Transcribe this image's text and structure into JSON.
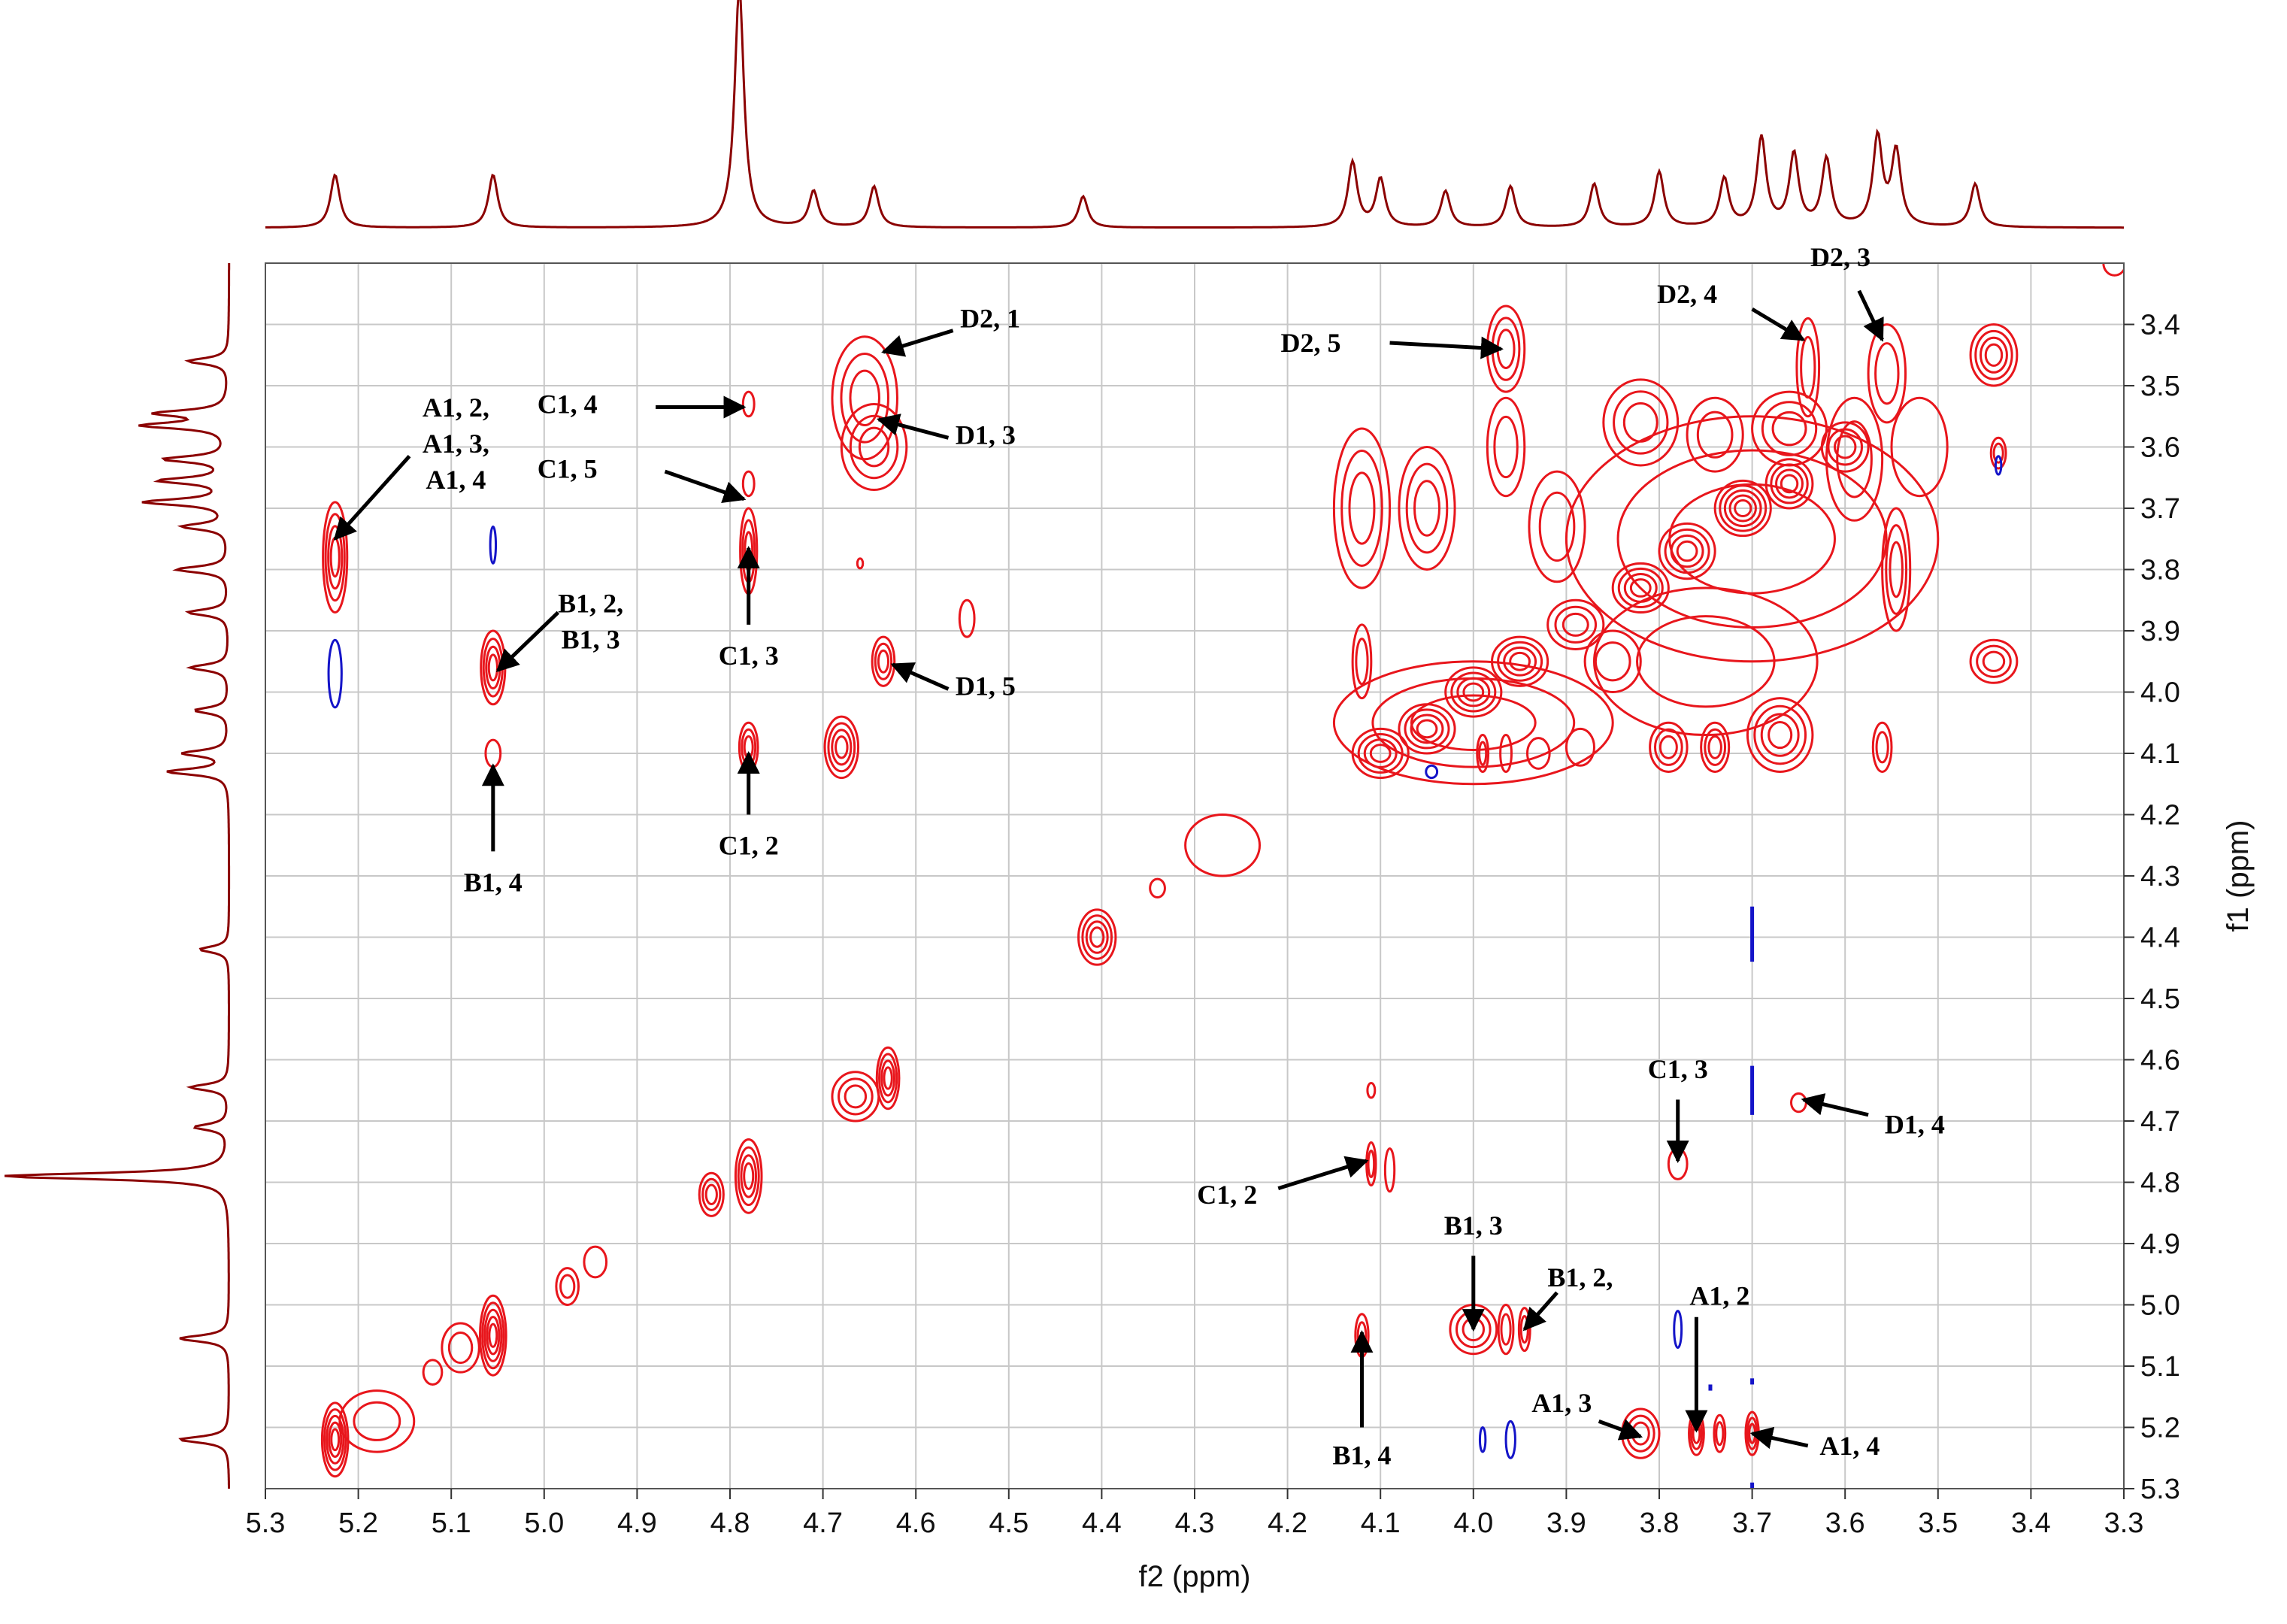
{
  "chart_data": {
    "type": "contour-2d",
    "xlabel": "f2 (ppm)",
    "ylabel": "f1 (ppm)",
    "xlim": [
      5.3,
      3.3
    ],
    "ylim": [
      3.3,
      5.3
    ],
    "x_ticks": [
      "5.3",
      "5.2",
      "5.1",
      "5.0",
      "4.9",
      "4.8",
      "4.7",
      "4.6",
      "4.5",
      "4.4",
      "4.3",
      "4.2",
      "4.1",
      "4.0",
      "3.9",
      "3.8",
      "3.7",
      "3.6",
      "3.5",
      "3.4",
      "3.3"
    ],
    "y_ticks": [
      "3.4",
      "3.5",
      "3.6",
      "3.7",
      "3.8",
      "3.9",
      "4.0",
      "4.1",
      "4.2",
      "4.3",
      "4.4",
      "4.5",
      "4.6",
      "4.7",
      "4.8",
      "4.9",
      "5.0",
      "5.1",
      "5.2",
      "5.3"
    ],
    "grid": true,
    "colors": {
      "positive": "#e8161c",
      "negative": "#1414c8",
      "projection": "#8b0000",
      "grid": "#c8c8c8"
    },
    "projection_peaks_f2": [
      {
        "x": 5.225,
        "h": 0.22
      },
      {
        "x": 5.055,
        "h": 0.22
      },
      {
        "x": 4.79,
        "h": 1.0
      },
      {
        "x": 4.71,
        "h": 0.15
      },
      {
        "x": 4.645,
        "h": 0.17
      },
      {
        "x": 4.42,
        "h": 0.13
      },
      {
        "x": 4.13,
        "h": 0.27
      },
      {
        "x": 4.1,
        "h": 0.2
      },
      {
        "x": 4.03,
        "h": 0.15
      },
      {
        "x": 3.96,
        "h": 0.17
      },
      {
        "x": 3.87,
        "h": 0.18
      },
      {
        "x": 3.8,
        "h": 0.23
      },
      {
        "x": 3.73,
        "h": 0.2
      },
      {
        "x": 3.69,
        "h": 0.37
      },
      {
        "x": 3.655,
        "h": 0.3
      },
      {
        "x": 3.62,
        "h": 0.28
      },
      {
        "x": 3.565,
        "h": 0.37
      },
      {
        "x": 3.545,
        "h": 0.31
      },
      {
        "x": 3.46,
        "h": 0.18
      }
    ],
    "projection_peaks_f1": [
      {
        "y": 5.22,
        "h": 0.22
      },
      {
        "y": 5.055,
        "h": 0.22
      },
      {
        "y": 4.79,
        "h": 1.0
      },
      {
        "y": 4.71,
        "h": 0.15
      },
      {
        "y": 4.645,
        "h": 0.17
      },
      {
        "y": 4.42,
        "h": 0.13
      },
      {
        "y": 4.13,
        "h": 0.27
      },
      {
        "y": 4.1,
        "h": 0.2
      },
      {
        "y": 4.03,
        "h": 0.15
      },
      {
        "y": 3.96,
        "h": 0.17
      },
      {
        "y": 3.87,
        "h": 0.18
      },
      {
        "y": 3.8,
        "h": 0.23
      },
      {
        "y": 3.73,
        "h": 0.2
      },
      {
        "y": 3.69,
        "h": 0.37
      },
      {
        "y": 3.655,
        "h": 0.3
      },
      {
        "y": 3.62,
        "h": 0.28
      },
      {
        "y": 3.565,
        "h": 0.37
      },
      {
        "y": 3.545,
        "h": 0.31
      },
      {
        "y": 3.46,
        "h": 0.18
      }
    ],
    "peaks": [
      {
        "x": 5.225,
        "y": 5.22,
        "sx": 0.014,
        "sy": 0.06,
        "levels": 5,
        "sign": "pos"
      },
      {
        "x": 5.18,
        "y": 5.19,
        "sx": 0.04,
        "sy": 0.05,
        "levels": 2,
        "sign": "pos"
      },
      {
        "x": 5.12,
        "y": 5.11,
        "sx": 0.01,
        "sy": 0.02,
        "levels": 1,
        "sign": "pos"
      },
      {
        "x": 5.055,
        "y": 5.05,
        "sx": 0.014,
        "sy": 0.065,
        "levels": 5,
        "sign": "pos"
      },
      {
        "x": 5.09,
        "y": 5.07,
        "sx": 0.02,
        "sy": 0.04,
        "levels": 2,
        "sign": "pos"
      },
      {
        "x": 4.975,
        "y": 4.97,
        "sx": 0.012,
        "sy": 0.03,
        "levels": 2,
        "sign": "pos"
      },
      {
        "x": 4.945,
        "y": 4.93,
        "sx": 0.012,
        "sy": 0.025,
        "levels": 1,
        "sign": "pos"
      },
      {
        "x": 4.82,
        "y": 4.82,
        "sx": 0.013,
        "sy": 0.035,
        "levels": 3,
        "sign": "pos"
      },
      {
        "x": 4.78,
        "y": 4.79,
        "sx": 0.014,
        "sy": 0.06,
        "levels": 4,
        "sign": "pos"
      },
      {
        "x": 4.665,
        "y": 4.66,
        "sx": 0.025,
        "sy": 0.04,
        "levels": 3,
        "sign": "pos"
      },
      {
        "x": 4.63,
        "y": 4.63,
        "sx": 0.012,
        "sy": 0.05,
        "levels": 4,
        "sign": "pos"
      },
      {
        "x": 4.405,
        "y": 4.4,
        "sx": 0.02,
        "sy": 0.045,
        "levels": 4,
        "sign": "pos"
      },
      {
        "x": 4.34,
        "y": 4.32,
        "sx": 0.008,
        "sy": 0.015,
        "levels": 1,
        "sign": "pos"
      },
      {
        "x": 4.27,
        "y": 4.25,
        "sx": 0.04,
        "sy": 0.05,
        "levels": 1,
        "sign": "pos"
      },
      {
        "x": 5.225,
        "y": 3.78,
        "sx": 0.013,
        "sy": 0.09,
        "levels": 4,
        "sign": "pos"
      },
      {
        "x": 5.055,
        "y": 3.96,
        "sx": 0.013,
        "sy": 0.06,
        "levels": 4,
        "sign": "pos"
      },
      {
        "x": 5.055,
        "y": 4.1,
        "sx": 0.008,
        "sy": 0.022,
        "levels": 1,
        "sign": "pos"
      },
      {
        "x": 4.78,
        "y": 3.53,
        "sx": 0.006,
        "sy": 0.02,
        "levels": 1,
        "sign": "pos"
      },
      {
        "x": 4.78,
        "y": 3.66,
        "sx": 0.006,
        "sy": 0.02,
        "levels": 1,
        "sign": "pos"
      },
      {
        "x": 4.78,
        "y": 3.77,
        "sx": 0.009,
        "sy": 0.07,
        "levels": 3,
        "sign": "pos"
      },
      {
        "x": 4.78,
        "y": 4.09,
        "sx": 0.01,
        "sy": 0.04,
        "levels": 3,
        "sign": "pos"
      },
      {
        "x": 4.68,
        "y": 4.09,
        "sx": 0.018,
        "sy": 0.05,
        "levels": 4,
        "sign": "pos"
      },
      {
        "x": 4.655,
        "y": 3.52,
        "sx": 0.035,
        "sy": 0.1,
        "levels": 3,
        "sign": "pos"
      },
      {
        "x": 4.645,
        "y": 3.6,
        "sx": 0.035,
        "sy": 0.07,
        "levels": 3,
        "sign": "pos"
      },
      {
        "x": 4.635,
        "y": 3.95,
        "sx": 0.012,
        "sy": 0.04,
        "levels": 3,
        "sign": "pos"
      },
      {
        "x": 4.545,
        "y": 3.88,
        "sx": 0.008,
        "sy": 0.03,
        "levels": 1,
        "sign": "pos"
      },
      {
        "x": 4.66,
        "y": 3.79,
        "sx": 0.003,
        "sy": 0.008,
        "levels": 1,
        "sign": "pos"
      },
      {
        "x": 4.11,
        "y": 4.65,
        "sx": 0.004,
        "sy": 0.012,
        "levels": 1,
        "sign": "pos"
      },
      {
        "x": 4.11,
        "y": 4.77,
        "sx": 0.005,
        "sy": 0.035,
        "levels": 2,
        "sign": "pos"
      },
      {
        "x": 4.09,
        "y": 4.78,
        "sx": 0.005,
        "sy": 0.035,
        "levels": 1,
        "sign": "pos"
      },
      {
        "x": 3.78,
        "y": 4.77,
        "sx": 0.01,
        "sy": 0.025,
        "levels": 1,
        "sign": "pos"
      },
      {
        "x": 3.65,
        "y": 4.67,
        "sx": 0.008,
        "sy": 0.015,
        "levels": 1,
        "sign": "pos"
      },
      {
        "x": 4.12,
        "y": 5.05,
        "sx": 0.007,
        "sy": 0.035,
        "levels": 2,
        "sign": "pos"
      },
      {
        "x": 4.0,
        "y": 5.04,
        "sx": 0.025,
        "sy": 0.04,
        "levels": 3,
        "sign": "pos"
      },
      {
        "x": 3.965,
        "y": 5.04,
        "sx": 0.008,
        "sy": 0.04,
        "levels": 2,
        "sign": "pos"
      },
      {
        "x": 3.945,
        "y": 5.04,
        "sx": 0.006,
        "sy": 0.035,
        "levels": 2,
        "sign": "pos"
      },
      {
        "x": 3.82,
        "y": 5.21,
        "sx": 0.02,
        "sy": 0.04,
        "levels": 3,
        "sign": "pos"
      },
      {
        "x": 3.76,
        "y": 5.21,
        "sx": 0.008,
        "sy": 0.035,
        "levels": 3,
        "sign": "pos"
      },
      {
        "x": 3.735,
        "y": 5.21,
        "sx": 0.006,
        "sy": 0.03,
        "levels": 2,
        "sign": "pos"
      },
      {
        "x": 3.7,
        "y": 5.21,
        "sx": 0.007,
        "sy": 0.035,
        "levels": 3,
        "sign": "pos"
      },
      {
        "x": 3.965,
        "y": 3.44,
        "sx": 0.02,
        "sy": 0.07,
        "levels": 3,
        "sign": "pos"
      },
      {
        "x": 3.965,
        "y": 3.6,
        "sx": 0.02,
        "sy": 0.08,
        "levels": 2,
        "sign": "pos"
      },
      {
        "x": 3.64,
        "y": 3.47,
        "sx": 0.012,
        "sy": 0.08,
        "levels": 2,
        "sign": "pos"
      },
      {
        "x": 3.555,
        "y": 3.48,
        "sx": 0.02,
        "sy": 0.08,
        "levels": 2,
        "sign": "pos"
      },
      {
        "x": 3.44,
        "y": 3.45,
        "sx": 0.025,
        "sy": 0.05,
        "levels": 4,
        "sign": "pos"
      },
      {
        "x": 3.435,
        "y": 3.61,
        "sx": 0.008,
        "sy": 0.025,
        "levels": 2,
        "sign": "pos"
      },
      {
        "x": 3.44,
        "y": 3.95,
        "sx": 0.025,
        "sy": 0.035,
        "levels": 3,
        "sign": "pos"
      },
      {
        "x": 3.545,
        "y": 3.8,
        "sx": 0.015,
        "sy": 0.1,
        "levels": 3,
        "sign": "pos"
      },
      {
        "x": 4.1,
        "y": 4.1,
        "sx": 0.03,
        "sy": 0.04,
        "levels": 4,
        "sign": "pos"
      },
      {
        "x": 4.05,
        "y": 4.06,
        "sx": 0.03,
        "sy": 0.04,
        "levels": 4,
        "sign": "pos"
      },
      {
        "x": 4.0,
        "y": 4.0,
        "sx": 0.03,
        "sy": 0.04,
        "levels": 4,
        "sign": "pos"
      },
      {
        "x": 3.95,
        "y": 3.95,
        "sx": 0.03,
        "sy": 0.04,
        "levels": 4,
        "sign": "pos"
      },
      {
        "x": 3.89,
        "y": 3.89,
        "sx": 0.03,
        "sy": 0.04,
        "levels": 3,
        "sign": "pos"
      },
      {
        "x": 3.82,
        "y": 3.83,
        "sx": 0.03,
        "sy": 0.04,
        "levels": 4,
        "sign": "pos"
      },
      {
        "x": 3.77,
        "y": 3.77,
        "sx": 0.03,
        "sy": 0.045,
        "levels": 4,
        "sign": "pos"
      },
      {
        "x": 3.71,
        "y": 3.7,
        "sx": 0.03,
        "sy": 0.045,
        "levels": 5,
        "sign": "pos"
      },
      {
        "x": 3.66,
        "y": 3.66,
        "sx": 0.025,
        "sy": 0.04,
        "levels": 4,
        "sign": "pos"
      },
      {
        "x": 3.6,
        "y": 3.6,
        "sx": 0.025,
        "sy": 0.04,
        "levels": 3,
        "sign": "pos"
      },
      {
        "x": 4.0,
        "y": 4.05,
        "sx": 0.15,
        "sy": 0.1,
        "levels": 3,
        "sign": "pos"
      },
      {
        "x": 3.7,
        "y": 3.75,
        "sx": 0.2,
        "sy": 0.2,
        "levels": 3,
        "sign": "pos"
      },
      {
        "x": 3.75,
        "y": 3.95,
        "sx": 0.12,
        "sy": 0.12,
        "levels": 2,
        "sign": "pos"
      },
      {
        "x": 4.12,
        "y": 3.7,
        "sx": 0.03,
        "sy": 0.13,
        "levels": 3,
        "sign": "pos"
      },
      {
        "x": 4.05,
        "y": 3.7,
        "sx": 0.03,
        "sy": 0.1,
        "levels": 3,
        "sign": "pos"
      },
      {
        "x": 4.12,
        "y": 3.95,
        "sx": 0.01,
        "sy": 0.06,
        "levels": 2,
        "sign": "pos"
      },
      {
        "x": 3.82,
        "y": 3.56,
        "sx": 0.04,
        "sy": 0.07,
        "levels": 3,
        "sign": "pos"
      },
      {
        "x": 3.74,
        "y": 3.58,
        "sx": 0.03,
        "sy": 0.06,
        "levels": 2,
        "sign": "pos"
      },
      {
        "x": 3.66,
        "y": 3.57,
        "sx": 0.04,
        "sy": 0.06,
        "levels": 3,
        "sign": "pos"
      },
      {
        "x": 3.59,
        "y": 3.62,
        "sx": 0.03,
        "sy": 0.1,
        "levels": 2,
        "sign": "pos"
      },
      {
        "x": 3.52,
        "y": 3.6,
        "sx": 0.03,
        "sy": 0.08,
        "levels": 1,
        "sign": "pos"
      },
      {
        "x": 3.91,
        "y": 3.73,
        "sx": 0.03,
        "sy": 0.09,
        "levels": 2,
        "sign": "pos"
      },
      {
        "x": 3.85,
        "y": 3.95,
        "sx": 0.03,
        "sy": 0.05,
        "levels": 2,
        "sign": "pos"
      },
      {
        "x": 3.79,
        "y": 4.09,
        "sx": 0.02,
        "sy": 0.04,
        "levels": 3,
        "sign": "pos"
      },
      {
        "x": 3.74,
        "y": 4.09,
        "sx": 0.015,
        "sy": 0.04,
        "levels": 3,
        "sign": "pos"
      },
      {
        "x": 3.67,
        "y": 4.07,
        "sx": 0.035,
        "sy": 0.06,
        "levels": 4,
        "sign": "pos"
      },
      {
        "x": 3.56,
        "y": 4.09,
        "sx": 0.01,
        "sy": 0.04,
        "levels": 2,
        "sign": "pos"
      },
      {
        "x": 3.885,
        "y": 4.09,
        "sx": 0.015,
        "sy": 0.03,
        "levels": 1,
        "sign": "pos"
      },
      {
        "x": 3.99,
        "y": 4.1,
        "sx": 0.006,
        "sy": 0.03,
        "levels": 2,
        "sign": "pos"
      },
      {
        "x": 3.965,
        "y": 4.1,
        "sx": 0.006,
        "sy": 0.03,
        "levels": 1,
        "sign": "pos"
      },
      {
        "x": 3.93,
        "y": 4.1,
        "sx": 0.012,
        "sy": 0.025,
        "levels": 1,
        "sign": "pos"
      },
      {
        "x": 3.31,
        "y": 3.3,
        "sx": 0.012,
        "sy": 0.02,
        "levels": 1,
        "sign": "pos"
      },
      {
        "x": 5.225,
        "y": 3.97,
        "sx": 0.007,
        "sy": 0.055,
        "levels": 1,
        "sign": "neg"
      },
      {
        "x": 5.055,
        "y": 3.76,
        "sx": 0.003,
        "sy": 0.03,
        "levels": 1,
        "sign": "neg"
      },
      {
        "x": 3.435,
        "y": 3.63,
        "sx": 0.003,
        "sy": 0.015,
        "levels": 1,
        "sign": "neg"
      },
      {
        "x": 4.045,
        "y": 4.13,
        "sx": 0.006,
        "sy": 0.01,
        "levels": 1,
        "sign": "neg"
      },
      {
        "x": 3.78,
        "y": 5.04,
        "sx": 0.004,
        "sy": 0.03,
        "levels": 1,
        "sign": "neg"
      },
      {
        "x": 3.99,
        "y": 5.22,
        "sx": 0.003,
        "sy": 0.02,
        "levels": 1,
        "sign": "neg"
      },
      {
        "x": 3.96,
        "y": 5.22,
        "sx": 0.005,
        "sy": 0.03,
        "levels": 1,
        "sign": "neg"
      }
    ],
    "negative_lines": [
      {
        "x": 3.7,
        "y1": 4.35,
        "y2": 4.44
      },
      {
        "x": 3.7,
        "y1": 4.61,
        "y2": 4.69
      },
      {
        "x": 3.7,
        "y1": 5.12,
        "y2": 5.13
      },
      {
        "x": 3.7,
        "y1": 5.29,
        "y2": 5.3
      },
      {
        "x": 3.745,
        "y1": 5.13,
        "y2": 5.14
      }
    ],
    "annotations": [
      {
        "lines": [
          "A1, 2,",
          "A1, 3,",
          "A1, 4"
        ],
        "lx": 5.095,
        "ly": 3.55,
        "tx": 5.225,
        "ty": 3.75,
        "sx": 5.145,
        "sy": 3.615
      },
      {
        "lines": [
          "C1, 4"
        ],
        "lx": 4.975,
        "ly": 3.545,
        "tx": 4.785,
        "ty": 3.535,
        "sx": 4.88,
        "sy": 3.535
      },
      {
        "lines": [
          "C1, 5"
        ],
        "lx": 4.975,
        "ly": 3.65,
        "tx": 4.785,
        "ty": 3.685,
        "sx": 4.87,
        "sy": 3.64
      },
      {
        "lines": [
          "B1, 2,",
          "B1, 3"
        ],
        "lx": 4.95,
        "ly": 3.87,
        "tx": 5.05,
        "ty": 3.965,
        "sx": 4.985,
        "sy": 3.87
      },
      {
        "lines": [
          "C1, 3"
        ],
        "lx": 4.78,
        "ly": 3.955,
        "tx": 4.78,
        "ty": 3.765,
        "sx": 4.78,
        "sy": 3.89
      },
      {
        "lines": [
          "C1, 2"
        ],
        "lx": 4.78,
        "ly": 4.265,
        "tx": 4.78,
        "ty": 4.1,
        "sx": 4.78,
        "sy": 4.2
      },
      {
        "lines": [
          "B1, 4"
        ],
        "lx": 5.055,
        "ly": 4.325,
        "tx": 5.055,
        "ty": 4.12,
        "sx": 5.055,
        "sy": 4.26
      },
      {
        "lines": [
          "D2, 1"
        ],
        "lx": 4.52,
        "ly": 3.405,
        "tx": 4.635,
        "ty": 3.445,
        "sx": 4.56,
        "sy": 3.41
      },
      {
        "lines": [
          "D1, 3"
        ],
        "lx": 4.525,
        "ly": 3.595,
        "tx": 4.64,
        "ty": 3.555,
        "sx": 4.565,
        "sy": 3.585
      },
      {
        "lines": [
          "D1, 5"
        ],
        "lx": 4.525,
        "ly": 4.005,
        "tx": 4.625,
        "ty": 3.955,
        "sx": 4.565,
        "sy": 3.995
      },
      {
        "lines": [
          "D2, 5"
        ],
        "lx": 4.175,
        "ly": 3.445,
        "tx": 3.97,
        "ty": 3.44,
        "sx": 4.09,
        "sy": 3.43
      },
      {
        "lines": [
          "D2, 4"
        ],
        "lx": 3.77,
        "ly": 3.365,
        "tx": 3.645,
        "ty": 3.425,
        "sx": 3.7,
        "sy": 3.375
      },
      {
        "lines": [
          "D2, 3"
        ],
        "lx": 3.605,
        "ly": 3.305,
        "tx": 3.56,
        "ty": 3.425,
        "sx": 3.585,
        "sy": 3.345
      },
      {
        "lines": [
          "C1, 3"
        ],
        "lx": 3.78,
        "ly": 4.63,
        "tx": 3.78,
        "ty": 4.765,
        "sx": 3.78,
        "sy": 4.665
      },
      {
        "lines": [
          "D1, 4"
        ],
        "lx": 3.525,
        "ly": 4.72,
        "tx": 3.645,
        "ty": 4.665,
        "sx": 3.575,
        "sy": 4.69
      },
      {
        "lines": [
          "C1, 2"
        ],
        "lx": 4.265,
        "ly": 4.835,
        "tx": 4.115,
        "ty": 4.765,
        "sx": 4.21,
        "sy": 4.81
      },
      {
        "lines": [
          "B1, 3"
        ],
        "lx": 4.0,
        "ly": 4.885,
        "tx": 4.0,
        "ty": 5.04,
        "sx": 4.0,
        "sy": 4.92
      },
      {
        "lines": [
          "B1, 2,"
        ],
        "lx": 3.885,
        "ly": 4.97,
        "tx": 3.945,
        "ty": 5.04,
        "sx": 3.91,
        "sy": 4.98
      },
      {
        "lines": [
          "A1, 2"
        ],
        "lx": 3.735,
        "ly": 5.0,
        "tx": 3.76,
        "ty": 5.205,
        "sx": 3.76,
        "sy": 5.02
      },
      {
        "lines": [
          "A1, 3"
        ],
        "lx": 3.905,
        "ly": 5.175,
        "tx": 3.82,
        "ty": 5.215,
        "sx": 3.865,
        "sy": 5.19
      },
      {
        "lines": [
          "A1, 4"
        ],
        "lx": 3.595,
        "ly": 5.245,
        "tx": 3.7,
        "ty": 5.21,
        "sx": 3.64,
        "sy": 5.23
      },
      {
        "lines": [
          "B1, 4"
        ],
        "lx": 4.12,
        "ly": 5.26,
        "tx": 4.12,
        "ty": 5.045,
        "sx": 4.12,
        "sy": 5.2
      }
    ]
  }
}
